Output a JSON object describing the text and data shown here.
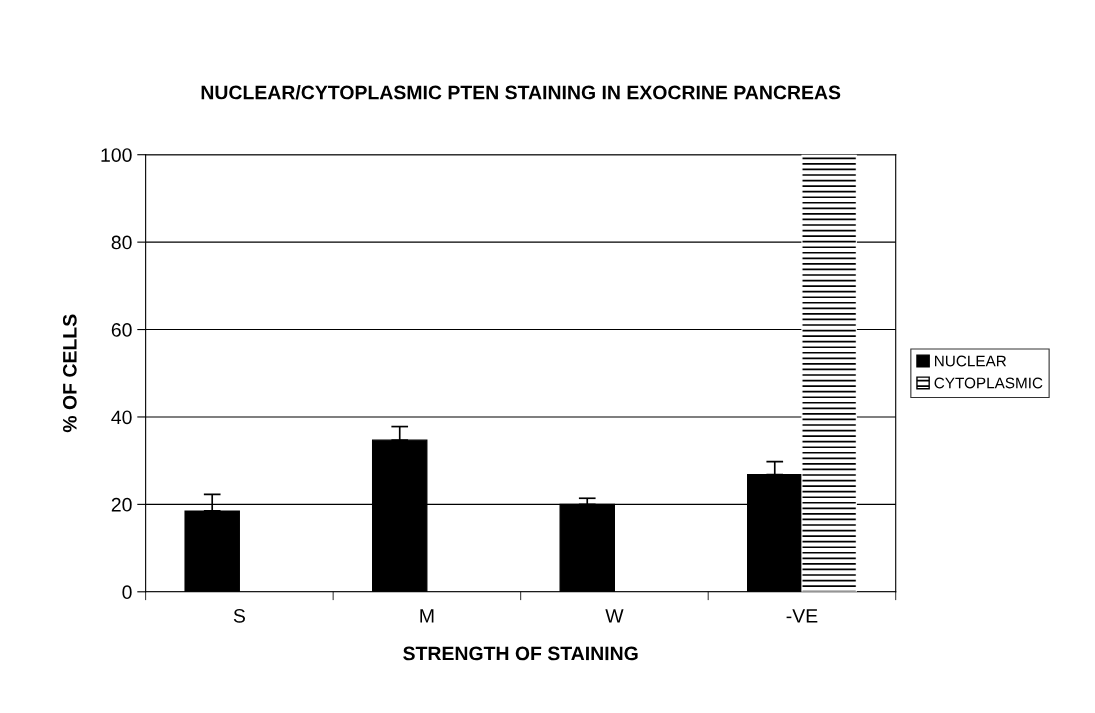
{
  "chart_data": {
    "type": "bar",
    "title": "NUCLEAR/CYTOPLASMIC PTEN STAINING IN EXOCRINE PANCREAS",
    "xlabel": "STRENGTH OF STAINING",
    "ylabel": "% OF CELLS",
    "categories": [
      "S",
      "M",
      "W",
      "-VE"
    ],
    "series": [
      {
        "name": "NUCLEAR",
        "color": "#000000",
        "values": [
          18.5,
          34.7,
          20.0,
          26.8
        ],
        "errors": [
          [
            18.5,
            22.3
          ],
          [
            34.7,
            37.8
          ],
          [
            20.0,
            21.4
          ],
          [
            26.8,
            29.8
          ]
        ]
      },
      {
        "name": "CYTOPLASMIC",
        "color": "#ffffff",
        "values": [
          0,
          0,
          0,
          100
        ]
      }
    ],
    "ylim": [
      0,
      100
    ],
    "yticks": [
      0,
      20,
      40,
      60,
      80,
      100
    ],
    "grid": "y",
    "legend": "right"
  }
}
